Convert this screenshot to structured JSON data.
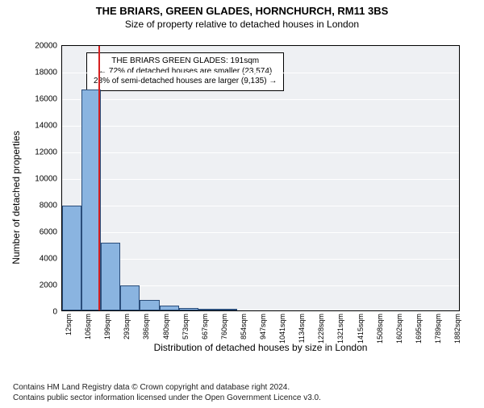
{
  "title_line1": "THE BRIARS, GREEN GLADES, HORNCHURCH, RM11 3BS",
  "title_line2": "Size of property relative to detached houses in London",
  "chart": {
    "type": "histogram",
    "xlabel": "Distribution of detached houses by size in London",
    "ylabel": "Number of detached properties",
    "ylim": [
      0,
      20000
    ],
    "ytick_step": 2000,
    "yticks": [
      0,
      2000,
      4000,
      6000,
      8000,
      10000,
      12000,
      14000,
      16000,
      18000,
      20000
    ],
    "x_start": 12,
    "x_end": 1929,
    "xticks": [
      12,
      106,
      199,
      293,
      386,
      480,
      573,
      667,
      760,
      854,
      947,
      1041,
      1134,
      1228,
      1321,
      1415,
      1508,
      1602,
      1695,
      1789,
      1882
    ],
    "xtick_unit": "sqm",
    "bars": [
      {
        "x_from": 12,
        "x_to": 106,
        "count": 7900
      },
      {
        "x_from": 106,
        "x_to": 199,
        "count": 16600
      },
      {
        "x_from": 199,
        "x_to": 293,
        "count": 5100
      },
      {
        "x_from": 293,
        "x_to": 386,
        "count": 1900
      },
      {
        "x_from": 386,
        "x_to": 480,
        "count": 800
      },
      {
        "x_from": 480,
        "x_to": 573,
        "count": 350
      },
      {
        "x_from": 573,
        "x_to": 667,
        "count": 200
      },
      {
        "x_from": 667,
        "x_to": 760,
        "count": 120
      },
      {
        "x_from": 760,
        "x_to": 854,
        "count": 70
      }
    ],
    "bar_fill": "#8ab4e0",
    "bar_border": "#2a4d7a",
    "background_color": "#eef0f3",
    "grid_color": "#ffffff",
    "marker": {
      "x": 191,
      "color": "#d62020",
      "annotation_lines": [
        "THE BRIARS GREEN GLADES: 191sqm",
        "← 72% of detached houses are smaller (23,574)",
        "28% of semi-detached houses are larger (9,135) →"
      ],
      "annotation_box_bg": "#ffffff",
      "annotation_box_border": "#000000",
      "annotation_fontsize": 10
    },
    "title_fontsize": 13,
    "label_fontsize": 12,
    "tick_fontsize": 10
  },
  "attribution": {
    "line1": "Contains HM Land Registry data © Crown copyright and database right 2024.",
    "line2": "Contains public sector information licensed under the Open Government Licence v3.0."
  }
}
